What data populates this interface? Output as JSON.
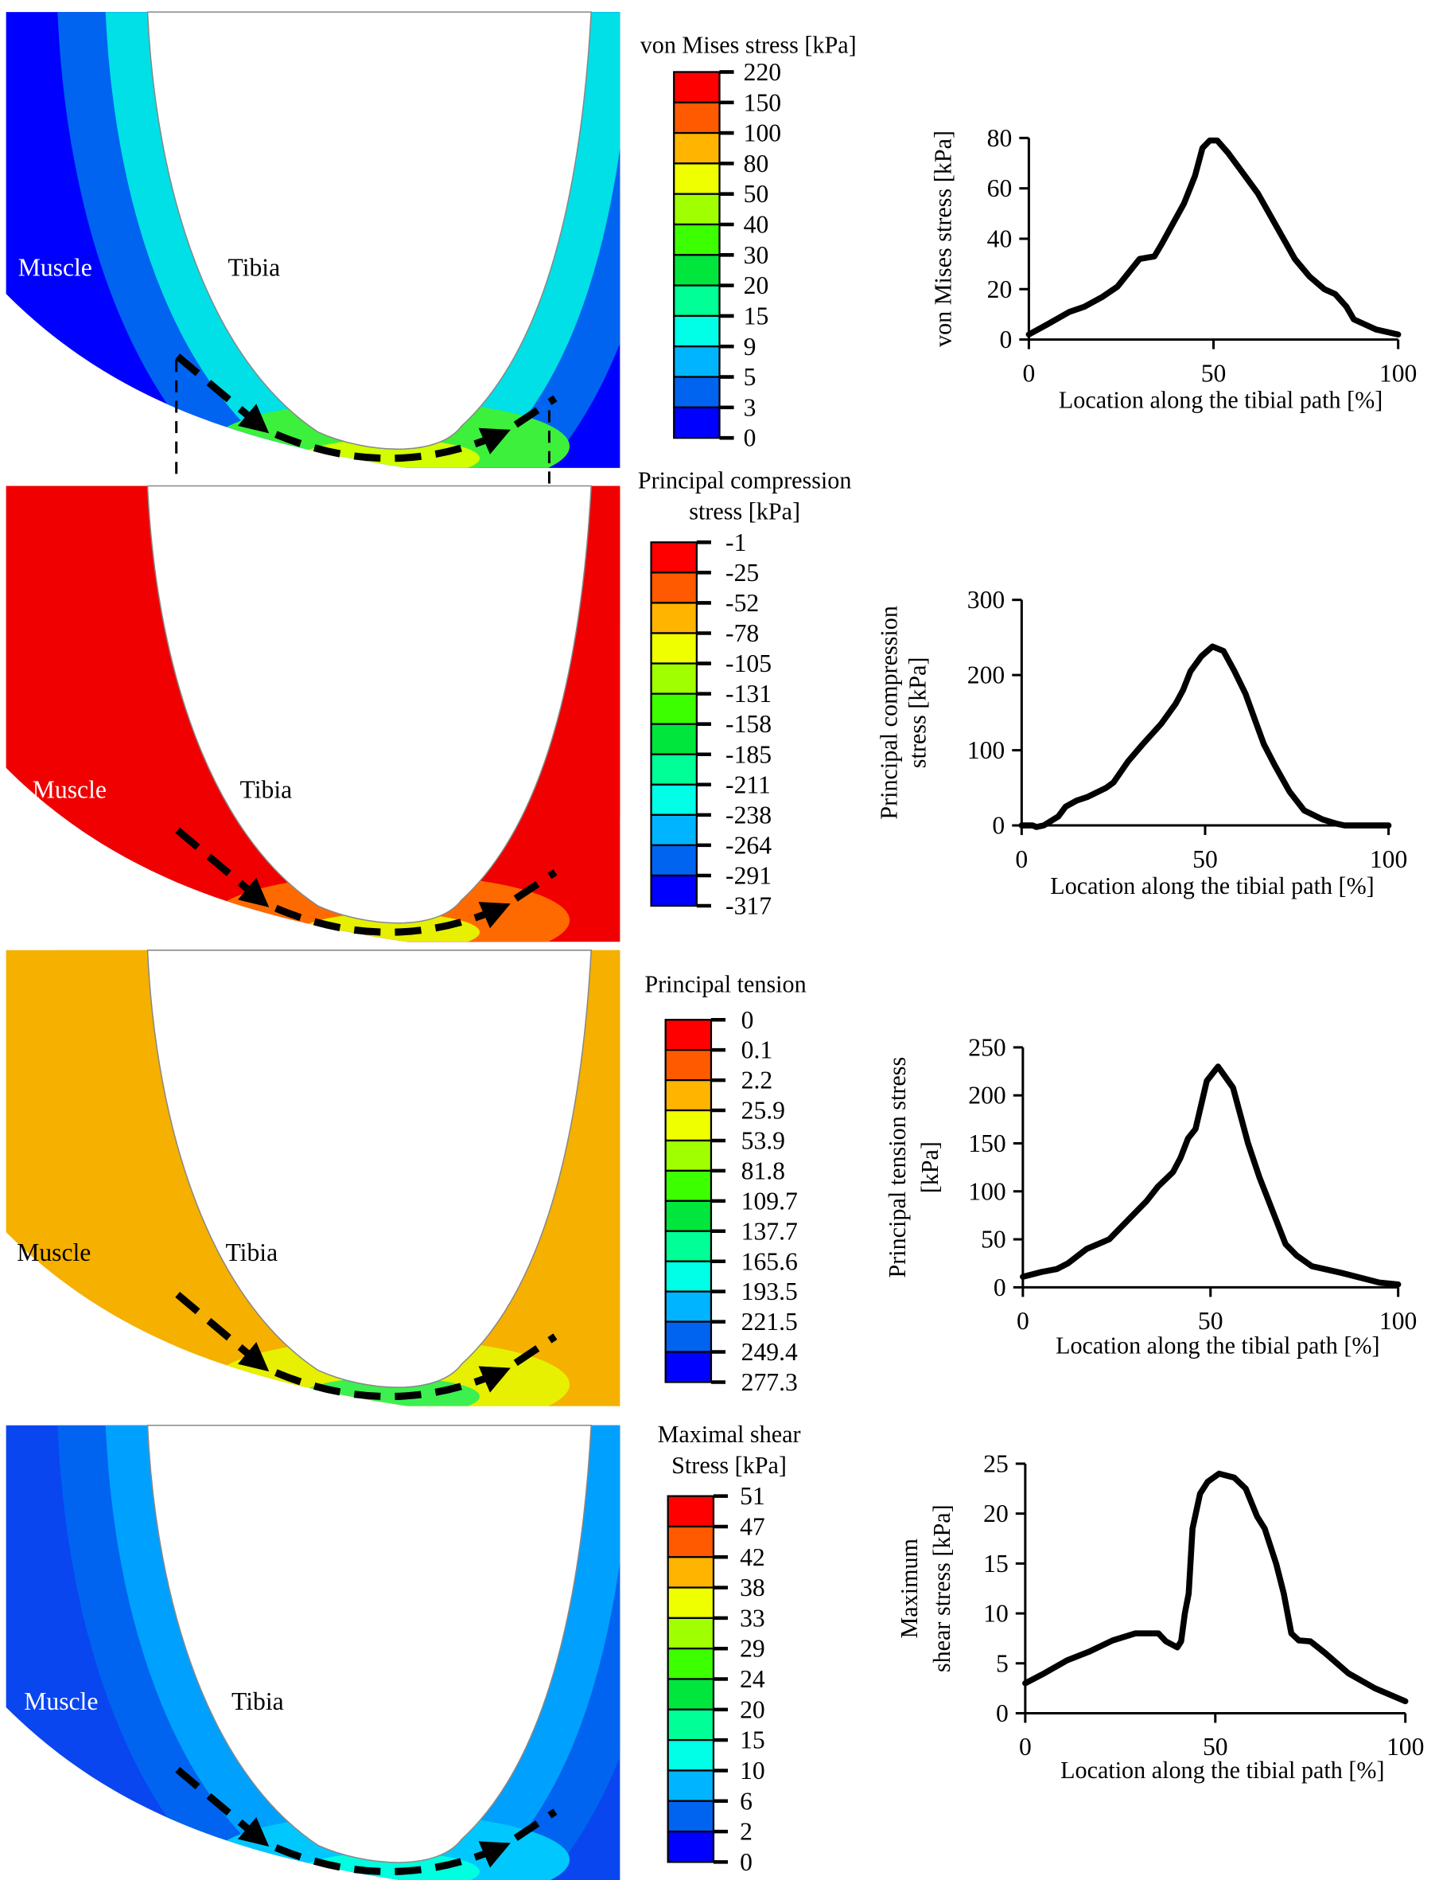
{
  "colorbar_colors": [
    "#ff0000",
    "#ff5a00",
    "#ffb400",
    "#f0ff00",
    "#a0ff00",
    "#3cff00",
    "#00e63c",
    "#00ff96",
    "#00ffe6",
    "#00b4ff",
    "#0064f0",
    "#0000ff"
  ],
  "fe_labels": {
    "muscle": "Muscle",
    "tibia": "Tibia",
    "start": "0%",
    "end": "100%"
  },
  "panels": [
    {
      "legend_title": [
        "von Mises stress [kPa]"
      ],
      "legend_ticks": [
        "220",
        "150",
        "100",
        "80",
        "50",
        "40",
        "30",
        "20",
        "15",
        "9",
        "5",
        "3",
        "0"
      ],
      "fe_colors": [
        "#0000ff",
        "#0064f0",
        "#00e0e6",
        "#3cf03c",
        "#d2ff00"
      ],
      "muscle_label_color": "#ffffff"
    },
    {
      "legend_title": [
        "Principal compression",
        "stress [kPa]"
      ],
      "legend_ticks": [
        "-1",
        "-25",
        "-52",
        "-78",
        "-105",
        "-131",
        "-158",
        "-185",
        "-211",
        "-238",
        "-264",
        "-291",
        "-317"
      ],
      "fe_colors": [
        "#f00000",
        "#f00000",
        "#f00000",
        "#ff6a00",
        "#e6f000"
      ],
      "muscle_label_color": "#ffffff"
    },
    {
      "legend_title": [
        "Principal tension"
      ],
      "legend_ticks": [
        "0",
        "0.1",
        "2.2",
        "25.9",
        "53.9",
        "81.8",
        "109.7",
        "137.7",
        "165.6",
        "193.5",
        "221.5",
        "249.4",
        "277.3"
      ],
      "fe_colors": [
        "#f5b000",
        "#f5b000",
        "#f5b000",
        "#e6f000",
        "#3cf050"
      ],
      "muscle_label_color": "#000000"
    },
    {
      "legend_title": [
        "Maximal shear",
        "Stress [kPa]"
      ],
      "legend_ticks": [
        "51",
        "47",
        "42",
        "38",
        "33",
        "29",
        "24",
        "20",
        "15",
        "10",
        "6",
        "2",
        "0"
      ],
      "fe_colors": [
        "#0a46f0",
        "#0064f0",
        "#00a0ff",
        "#00c8ff",
        "#00ffe0"
      ],
      "muscle_label_color": "#ffffff"
    }
  ],
  "chart_data": [
    {
      "type": "line",
      "xlabel": "Location along the tibial path  [%]",
      "ylabel": [
        "von Mises stress [kPa]"
      ],
      "xlim": [
        0,
        100
      ],
      "ylim": [
        0,
        80
      ],
      "xticks": [
        "0",
        "50",
        "100"
      ],
      "yticks": [
        "0",
        "20",
        "40",
        "60",
        "80"
      ],
      "grid": false,
      "x": [
        0,
        5,
        11,
        15,
        20,
        24,
        30,
        34,
        36,
        42,
        45,
        47,
        49,
        51,
        54,
        57,
        62,
        67,
        72,
        76,
        80,
        83,
        86,
        88,
        94,
        100
      ],
      "y": [
        2,
        6,
        11,
        13,
        17,
        21,
        32,
        33,
        38,
        54,
        65,
        76,
        79,
        79,
        74,
        68,
        58,
        45,
        32,
        25,
        20,
        18,
        13,
        8,
        4,
        2
      ]
    },
    {
      "type": "line",
      "xlabel": "Location along the tibial path  [%]",
      "ylabel": [
        "Principal compression",
        "stress [kPa]"
      ],
      "xlim": [
        0,
        100
      ],
      "ylim": [
        0,
        300
      ],
      "xticks": [
        "0",
        "50",
        "100"
      ],
      "yticks": [
        "0",
        "100",
        "200",
        "300"
      ],
      "grid": false,
      "x": [
        0,
        3,
        4,
        6,
        10,
        12,
        15,
        18,
        23,
        25,
        29,
        33,
        38,
        42,
        44,
        46,
        49,
        52,
        55,
        58,
        61,
        64,
        66,
        69,
        73,
        77,
        82,
        86,
        88,
        100
      ],
      "y": [
        0,
        0,
        -2,
        0,
        12,
        25,
        33,
        38,
        50,
        57,
        85,
        108,
        135,
        162,
        180,
        205,
        225,
        238,
        232,
        205,
        175,
        135,
        108,
        80,
        45,
        20,
        8,
        2,
        0,
        0
      ]
    },
    {
      "type": "line",
      "xlabel": "Location along the tibial path  [%]",
      "ylabel": [
        "Principal tension stress",
        "[kPa]"
      ],
      "xlim": [
        0,
        100
      ],
      "ylim": [
        0,
        250
      ],
      "xticks": [
        "0",
        "50",
        "100"
      ],
      "yticks": [
        "0",
        "50",
        "100",
        "150",
        "200",
        "250"
      ],
      "grid": false,
      "x": [
        0,
        5,
        9,
        12,
        17,
        20,
        23,
        28,
        33,
        36,
        40,
        42,
        44,
        46,
        49,
        52,
        56,
        60,
        63,
        67,
        70,
        73,
        77,
        85,
        95,
        100
      ],
      "y": [
        11,
        16,
        19,
        25,
        40,
        45,
        50,
        70,
        90,
        105,
        120,
        135,
        155,
        165,
        215,
        230,
        208,
        150,
        115,
        75,
        45,
        33,
        22,
        15,
        5,
        3
      ]
    },
    {
      "type": "line",
      "xlabel": "Location along the tibial path  [%]",
      "ylabel": [
        "Maximum",
        "shear stress [kPa]"
      ],
      "xlim": [
        0,
        100
      ],
      "ylim": [
        0,
        25
      ],
      "xticks": [
        "0",
        "50",
        "100"
      ],
      "yticks": [
        "0",
        "5",
        "10",
        "15",
        "20",
        "25"
      ],
      "grid": false,
      "x": [
        0,
        5,
        11,
        17,
        23,
        29,
        35,
        37,
        40,
        41,
        42,
        43,
        44,
        46,
        48,
        51,
        55,
        58,
        61,
        63,
        66,
        68,
        70,
        72,
        75,
        79,
        85,
        92,
        100
      ],
      "y": [
        3,
        4,
        5.3,
        6.2,
        7.3,
        8,
        8,
        7.2,
        6.6,
        7.2,
        10,
        12,
        18.5,
        22,
        23.2,
        24,
        23.6,
        22.5,
        19.7,
        18.5,
        15,
        12,
        8,
        7.3,
        7.2,
        6,
        4,
        2.5,
        1.2
      ]
    }
  ]
}
